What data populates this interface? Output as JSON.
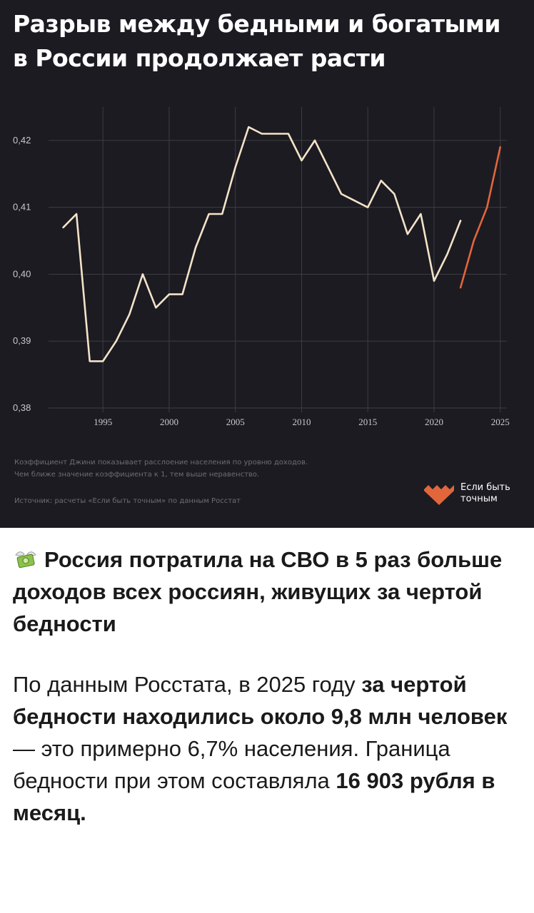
{
  "card": {
    "title_line1": "Разрыв между бедными и богатыми",
    "title_line2": "в России продолжает расти",
    "footnote_line1": "Коэффициент Джини показывает расслоение населения по уровню доходов.",
    "footnote_line2": "Чем ближе значение коэффициента к 1, тем выше неравенство.",
    "source": "Источник: расчеты «Если быть точным» по данным Росстат",
    "logo_line1": "Если быть",
    "logo_line2": "точным",
    "background": "#1c1b22"
  },
  "chart_data": {
    "type": "line",
    "xlim": [
      1991,
      2025.5
    ],
    "ylim": [
      0.38,
      0.425
    ],
    "x_ticks": [
      1995,
      2000,
      2005,
      2010,
      2015,
      2020,
      2025
    ],
    "y_ticks": [
      0.38,
      0.39,
      0.4,
      0.41,
      0.42
    ],
    "y_tick_labels": [
      "0,38",
      "0,39",
      "0,40",
      "0,41",
      "0,42"
    ],
    "grid": true,
    "series": [
      {
        "color": "#f3e3c8",
        "x": [
          1992,
          1993,
          1994,
          1995,
          1996,
          1997,
          1998,
          1999,
          2000,
          2001,
          2002,
          2003,
          2004,
          2005,
          2006,
          2007,
          2008,
          2009,
          2010,
          2011,
          2012,
          2013,
          2014,
          2015,
          2016,
          2017,
          2018,
          2019,
          2020,
          2021,
          2022
        ],
        "y": [
          0.407,
          0.409,
          0.387,
          0.387,
          0.39,
          0.394,
          0.4,
          0.395,
          0.397,
          0.397,
          0.404,
          0.409,
          0.409,
          0.416,
          0.422,
          0.421,
          0.421,
          0.421,
          0.417,
          0.42,
          0.416,
          0.412,
          0.411,
          0.41,
          0.414,
          0.412,
          0.406,
          0.409,
          0.399,
          0.403,
          0.408
        ]
      },
      {
        "color": "#e2663b",
        "x": [
          2022,
          2023,
          2024,
          2025
        ],
        "y": [
          0.398,
          0.405,
          0.41,
          0.419
        ]
      }
    ]
  },
  "post": {
    "headline": "Россия потратила на СВО в 5 раз больше доходов всех россиян, живущих за чертой бедности",
    "body_part1": "По данным Росстата, в 2025 году ",
    "body_bold1": "за чертой бедности находились около 9,8 млн человек",
    "body_part2": " — это примерно 6,7% населения. Граница бедности при этом составляла ",
    "body_bold2": "16 903 рубля в месяц.",
    "icon": "money-with-wings-icon"
  }
}
